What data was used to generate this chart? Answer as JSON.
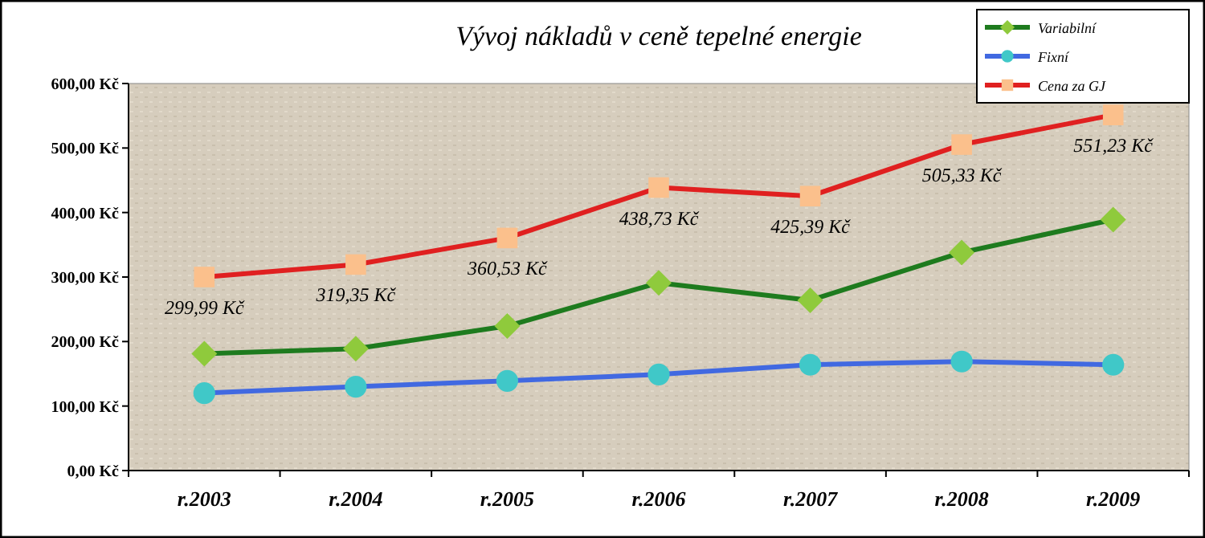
{
  "chart_data": {
    "type": "line",
    "title": "Vývoj nákladů v ceně tepelné energie",
    "categories": [
      "r.2003",
      "r.2004",
      "r.2005",
      "r.2006",
      "r.2007",
      "r.2008",
      "r.2009"
    ],
    "series": [
      {
        "name": "Variabilní",
        "color": "#1e7b1e",
        "marker": "diamond",
        "values": [
          181,
          189,
          224,
          291,
          264,
          338,
          389
        ]
      },
      {
        "name": "Fixní",
        "color": "#4169e1",
        "marker": "circle",
        "values": [
          120,
          130,
          139,
          149,
          164,
          169,
          164
        ]
      },
      {
        "name": "Cena za GJ",
        "color": "#e02020",
        "marker": "square",
        "values": [
          299.99,
          319.35,
          360.53,
          438.73,
          425.39,
          505.33,
          551.23
        ],
        "value_labels": [
          "299,99 Kč",
          "319,35 Kč",
          "360,53 Kč",
          "438,73 Kč",
          "425,39 Kč",
          "505,33 Kč",
          "551,23 Kč"
        ]
      }
    ],
    "ylim": [
      0,
      600
    ],
    "yticks": [
      {
        "value": 0,
        "label": "0,00 Kč"
      },
      {
        "value": 100,
        "label": "100,00 Kč"
      },
      {
        "value": 200,
        "label": "200,00 Kč"
      },
      {
        "value": 300,
        "label": "300,00 Kč"
      },
      {
        "value": 400,
        "label": "400,00 Kč"
      },
      {
        "value": 500,
        "label": "500,00 Kč"
      },
      {
        "value": 600,
        "label": "600,00 Kč"
      }
    ],
    "grid": false,
    "legend": "top right"
  }
}
